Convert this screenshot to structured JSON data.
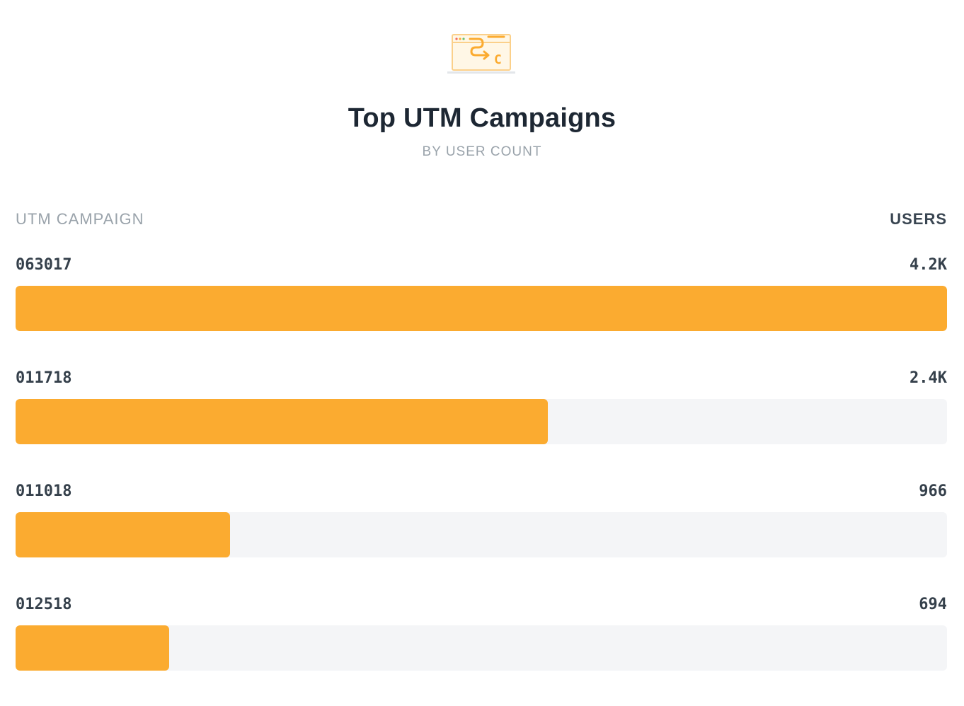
{
  "header": {
    "logo_icon": "browser-campaign-icon",
    "title": "Top UTM Campaigns",
    "subtitle": "BY USER COUNT"
  },
  "columns": {
    "left": "UTM CAMPAIGN",
    "right": "USERS"
  },
  "colors": {
    "bar": "#fbab30",
    "track": "#f4f5f7"
  },
  "chart_data": {
    "type": "bar",
    "orientation": "horizontal",
    "title": "Top UTM Campaigns",
    "subtitle": "BY USER COUNT",
    "xlabel": "USERS",
    "ylabel": "UTM CAMPAIGN",
    "categories": [
      "063017",
      "011718",
      "011018",
      "012518"
    ],
    "values": [
      4200,
      2400,
      966,
      694
    ],
    "value_labels": [
      "4.2K",
      "2.4K",
      "966",
      "694"
    ],
    "xlim": [
      0,
      4200
    ],
    "grid": false,
    "legend": "none"
  }
}
